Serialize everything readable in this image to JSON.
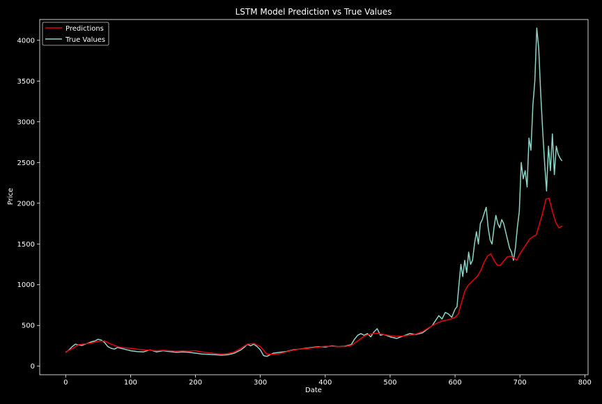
{
  "colors": {
    "background": "#000000",
    "axes": "#ffffff",
    "predictions": "#e8000b",
    "true_values": "#8dd3c7"
  },
  "chart_data": {
    "type": "line",
    "title": "LSTM Model Prediction vs True Values",
    "xlabel": "Date",
    "ylabel": "Price",
    "xlim": [
      -40,
      805
    ],
    "ylim": [
      -105,
      4255
    ],
    "xticks": [
      0,
      100,
      200,
      300,
      400,
      500,
      600,
      700,
      800
    ],
    "yticks": [
      0,
      500,
      1000,
      1500,
      2000,
      2500,
      3000,
      3500,
      4000
    ],
    "grid": false,
    "legend": {
      "position": "top-left",
      "entries": [
        "Predictions",
        "True Values"
      ]
    },
    "series": [
      {
        "name": "Predictions",
        "color": "#e8000b",
        "x": [
          0,
          10,
          20,
          30,
          40,
          50,
          60,
          70,
          80,
          90,
          100,
          110,
          120,
          130,
          140,
          150,
          160,
          170,
          180,
          190,
          200,
          210,
          220,
          230,
          240,
          250,
          260,
          270,
          280,
          290,
          300,
          305,
          310,
          320,
          330,
          340,
          350,
          360,
          370,
          380,
          390,
          400,
          410,
          420,
          430,
          440,
          450,
          460,
          470,
          480,
          490,
          500,
          510,
          520,
          530,
          540,
          550,
          560,
          570,
          580,
          590,
          600,
          605,
          610,
          615,
          620,
          625,
          630,
          635,
          640,
          645,
          650,
          655,
          660,
          665,
          670,
          675,
          680,
          685,
          690,
          695,
          700,
          705,
          710,
          715,
          720,
          725,
          730,
          735,
          740,
          745,
          750,
          755,
          760,
          765
        ],
        "y": [
          175,
          215,
          265,
          275,
          285,
          305,
          310,
          270,
          240,
          225,
          220,
          210,
          200,
          195,
          190,
          195,
          190,
          185,
          190,
          185,
          190,
          175,
          165,
          155,
          150,
          155,
          175,
          220,
          270,
          280,
          240,
          195,
          150,
          145,
          155,
          175,
          195,
          210,
          215,
          225,
          235,
          245,
          245,
          240,
          240,
          255,
          310,
          370,
          395,
          405,
          390,
          375,
          365,
          370,
          380,
          395,
          425,
          475,
          520,
          555,
          570,
          600,
          640,
          780,
          920,
          990,
          1030,
          1070,
          1110,
          1180,
          1280,
          1350,
          1380,
          1300,
          1240,
          1240,
          1290,
          1340,
          1350,
          1330,
          1300,
          1380,
          1440,
          1500,
          1560,
          1590,
          1610,
          1740,
          1880,
          2050,
          2060,
          1900,
          1770,
          1700,
          1720
        ]
      },
      {
        "name": "True Values",
        "color": "#8dd3c7",
        "x": [
          0,
          5,
          10,
          15,
          20,
          25,
          30,
          35,
          40,
          45,
          50,
          55,
          60,
          65,
          70,
          75,
          80,
          85,
          90,
          95,
          100,
          110,
          120,
          130,
          140,
          150,
          160,
          170,
          180,
          190,
          200,
          210,
          220,
          230,
          240,
          250,
          260,
          270,
          275,
          280,
          285,
          290,
          295,
          300,
          305,
          310,
          315,
          320,
          330,
          340,
          350,
          360,
          370,
          380,
          390,
          400,
          410,
          420,
          430,
          440,
          445,
          450,
          455,
          460,
          465,
          470,
          475,
          480,
          485,
          490,
          500,
          510,
          520,
          530,
          540,
          550,
          560,
          565,
          570,
          575,
          580,
          585,
          590,
          595,
          600,
          603,
          606,
          609,
          612,
          615,
          618,
          621,
          624,
          627,
          630,
          633,
          636,
          639,
          642,
          645,
          648,
          651,
          654,
          657,
          660,
          663,
          666,
          669,
          672,
          675,
          678,
          681,
          684,
          687,
          690,
          693,
          696,
          699,
          702,
          705,
          708,
          711,
          714,
          717,
          720,
          723,
          726,
          729,
          732,
          735,
          738,
          741,
          744,
          747,
          750,
          753,
          756,
          759,
          762,
          765
        ],
        "y": [
          170,
          200,
          240,
          270,
          260,
          255,
          270,
          285,
          300,
          310,
          330,
          320,
          290,
          240,
          220,
          210,
          230,
          220,
          210,
          200,
          190,
          180,
          175,
          200,
          175,
          190,
          180,
          170,
          175,
          170,
          160,
          150,
          145,
          140,
          135,
          140,
          160,
          200,
          230,
          270,
          250,
          270,
          240,
          200,
          130,
          120,
          140,
          160,
          170,
          180,
          200,
          210,
          220,
          230,
          240,
          235,
          250,
          240,
          245,
          265,
          330,
          380,
          400,
          380,
          400,
          360,
          420,
          460,
          380,
          390,
          360,
          340,
          370,
          400,
          390,
          410,
          470,
          500,
          560,
          620,
          580,
          660,
          640,
          600,
          700,
          730,
          1000,
          1250,
          1100,
          1300,
          1150,
          1400,
          1250,
          1300,
          1500,
          1650,
          1500,
          1750,
          1800,
          1880,
          1950,
          1700,
          1550,
          1500,
          1700,
          1850,
          1750,
          1700,
          1800,
          1750,
          1650,
          1550,
          1450,
          1400,
          1300,
          1450,
          1700,
          1900,
          2500,
          2300,
          2400,
          2200,
          2800,
          2650,
          3200,
          3500,
          4150,
          3900,
          3350,
          2900,
          2500,
          2150,
          2700,
          2400,
          2850,
          2350,
          2700,
          2600,
          2550,
          2520
        ]
      }
    ]
  }
}
